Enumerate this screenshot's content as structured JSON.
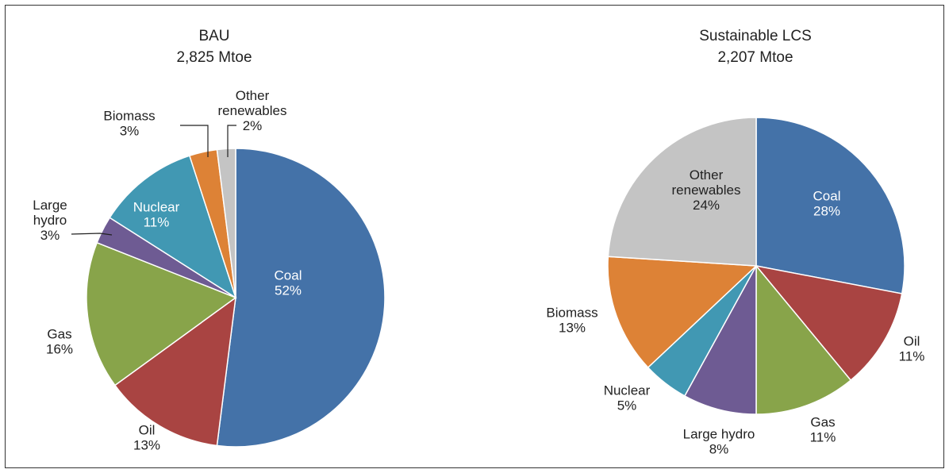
{
  "chart_data": [
    {
      "type": "pie",
      "title": "BAU",
      "subtitle": "2,825 Mtoe",
      "slices": [
        {
          "label": "Coal",
          "lines": [
            "Coal"
          ],
          "value": 52,
          "value_text": "52%",
          "color": "#4472A8"
        },
        {
          "label": "Oil",
          "lines": [
            "Oil"
          ],
          "value": 13,
          "value_text": "13%",
          "color": "#A94442"
        },
        {
          "label": "Gas",
          "lines": [
            "Gas"
          ],
          "value": 16,
          "value_text": "16%",
          "color": "#88A44A"
        },
        {
          "label": "Large hydro",
          "lines": [
            "Large",
            "hydro"
          ],
          "value": 3,
          "value_text": "3%",
          "color": "#6E5B93"
        },
        {
          "label": "Nuclear",
          "lines": [
            "Nuclear"
          ],
          "value": 11,
          "value_text": "11%",
          "color": "#4198B3"
        },
        {
          "label": "Biomass",
          "lines": [
            "Biomass"
          ],
          "value": 3,
          "value_text": "3%",
          "color": "#DD8236"
        },
        {
          "label": "Other renewables",
          "lines": [
            "Other",
            "renewables"
          ],
          "value": 2,
          "value_text": "2%",
          "color": "#C4C4C4"
        }
      ]
    },
    {
      "type": "pie",
      "title": "Sustainable LCS",
      "subtitle": "2,207 Mtoe",
      "slices": [
        {
          "label": "Coal",
          "lines": [
            "Coal"
          ],
          "value": 28,
          "value_text": "28%",
          "color": "#4472A8"
        },
        {
          "label": "Oil",
          "lines": [
            "Oil"
          ],
          "value": 11,
          "value_text": "11%",
          "color": "#A94442"
        },
        {
          "label": "Gas",
          "lines": [
            "Gas"
          ],
          "value": 11,
          "value_text": "11%",
          "color": "#88A44A"
        },
        {
          "label": "Large hydro",
          "lines": [
            "Large hydro"
          ],
          "value": 8,
          "value_text": "8%",
          "color": "#6E5B93"
        },
        {
          "label": "Nuclear",
          "lines": [
            "Nuclear"
          ],
          "value": 5,
          "value_text": "5%",
          "color": "#4198B3"
        },
        {
          "label": "Biomass",
          "lines": [
            "Biomass"
          ],
          "value": 13,
          "value_text": "13%",
          "color": "#DD8236"
        },
        {
          "label": "Other renewables",
          "lines": [
            "Other",
            "renewables"
          ],
          "value": 24,
          "value_text": "24%",
          "color": "#C4C4C4"
        }
      ]
    }
  ]
}
